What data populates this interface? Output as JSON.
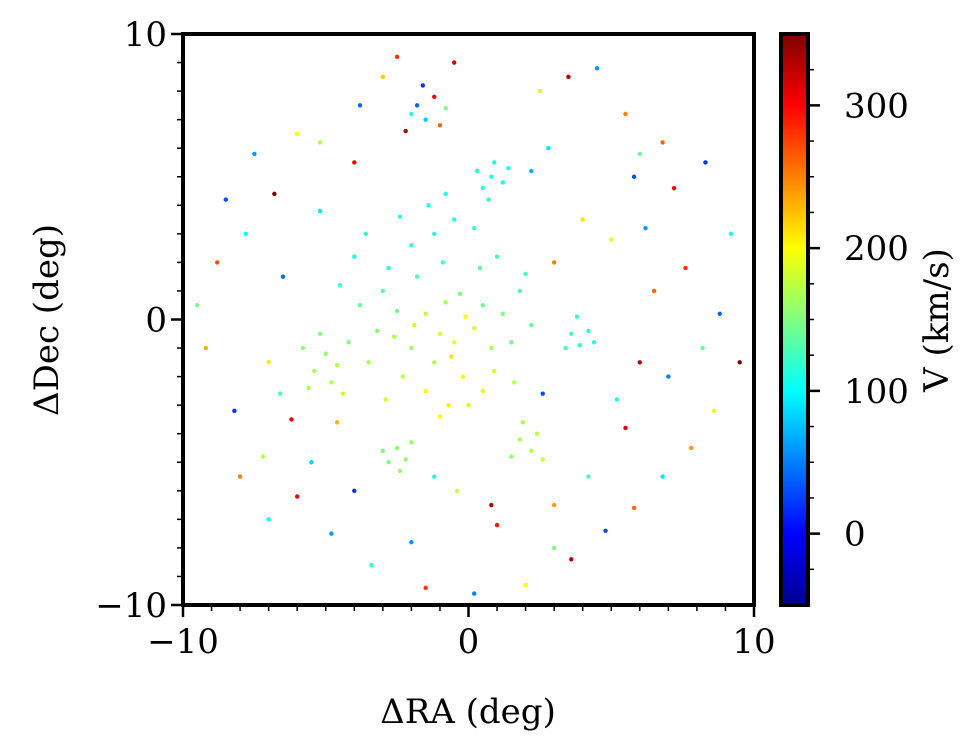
{
  "chart_data": {
    "type": "scatter",
    "title": "",
    "xlabel": "ΔRA (deg)",
    "ylabel": "ΔDec (deg)",
    "xlim": [
      -10,
      10
    ],
    "ylim": [
      -10,
      10
    ],
    "x_ticks": [
      {
        "value": -10,
        "label": "−10"
      },
      {
        "value": 0,
        "label": "0"
      },
      {
        "value": 10,
        "label": "10"
      }
    ],
    "y_ticks": [
      {
        "value": 10,
        "label": "10"
      },
      {
        "value": 0,
        "label": "0"
      },
      {
        "value": -10,
        "label": "−10"
      }
    ],
    "grid": false,
    "legend": "none",
    "colorbar": {
      "label": "V (km/s)",
      "colormap": "jet",
      "range": [
        -50,
        350
      ],
      "ticks": [
        {
          "value": 0,
          "label": "0"
        },
        {
          "value": 100,
          "label": "100"
        },
        {
          "value": 200,
          "label": "200"
        },
        {
          "value": 300,
          "label": "300"
        }
      ]
    },
    "series": [
      {
        "description": "sampled stars, color = line-of-sight velocity",
        "points": [
          [
            -1.0,
            -0.5,
            185
          ],
          [
            -0.5,
            -0.8,
            190
          ],
          [
            -1.5,
            0.2,
            175
          ],
          [
            -0.8,
            0.6,
            165
          ],
          [
            -2.0,
            -1.0,
            160
          ],
          [
            0.2,
            -0.3,
            180
          ],
          [
            -1.2,
            -1.5,
            170
          ],
          [
            -0.3,
            0.9,
            150
          ],
          [
            0.5,
            0.5,
            140
          ],
          [
            -2.5,
            0.3,
            145
          ],
          [
            -1.8,
            1.5,
            130
          ],
          [
            -0.9,
            2.0,
            125
          ],
          [
            -2.8,
            1.8,
            120
          ],
          [
            -1.2,
            3.0,
            118
          ],
          [
            -0.5,
            3.5,
            115
          ],
          [
            -2.0,
            2.6,
            122
          ],
          [
            -3.0,
            1.0,
            135
          ],
          [
            -3.2,
            -0.4,
            155
          ],
          [
            0.8,
            -1.0,
            165
          ],
          [
            1.2,
            0.2,
            150
          ],
          [
            1.5,
            -0.8,
            145
          ],
          [
            1.8,
            1.0,
            130
          ],
          [
            1.0,
            2.2,
            128
          ],
          [
            0.4,
            1.8,
            135
          ],
          [
            -0.2,
            -2.0,
            195
          ],
          [
            -1.5,
            -2.5,
            200
          ],
          [
            -0.7,
            -3.0,
            205
          ],
          [
            0.5,
            -2.5,
            190
          ],
          [
            -2.3,
            -2.0,
            175
          ],
          [
            -3.5,
            -1.5,
            165
          ],
          [
            -3.8,
            0.5,
            140
          ],
          [
            -2.6,
            -0.6,
            170
          ],
          [
            -1.9,
            -0.2,
            180
          ],
          [
            -0.1,
            0.1,
            200
          ],
          [
            -0.6,
            -1.3,
            210
          ],
          [
            0.9,
            -1.8,
            185
          ],
          [
            1.6,
            -2.2,
            170
          ],
          [
            2.2,
            -0.2,
            140
          ],
          [
            2.0,
            1.6,
            125
          ],
          [
            -4.0,
            2.2,
            110
          ],
          [
            -3.6,
            3.0,
            115
          ],
          [
            -2.4,
            3.6,
            118
          ],
          [
            -1.4,
            4.0,
            112
          ],
          [
            -0.8,
            4.4,
            108
          ],
          [
            0.2,
            3.2,
            120
          ],
          [
            -4.5,
            1.2,
            125
          ],
          [
            -4.2,
            -0.8,
            150
          ],
          [
            -2.9,
            -2.8,
            180
          ],
          [
            -1.0,
            -3.4,
            198
          ],
          [
            0.0,
            -3.0,
            188
          ],
          [
            -5.0,
            -1.2,
            160
          ],
          [
            -5.4,
            -1.8,
            165
          ],
          [
            -4.8,
            -2.2,
            170
          ],
          [
            -5.8,
            -1.0,
            155
          ],
          [
            -5.2,
            -0.5,
            150
          ],
          [
            -4.6,
            -1.6,
            172
          ],
          [
            -5.6,
            -2.4,
            168
          ],
          [
            -4.4,
            -2.6,
            175
          ],
          [
            0.8,
            5.0,
            110
          ],
          [
            0.5,
            4.6,
            115
          ],
          [
            1.2,
            4.8,
            108
          ],
          [
            0.9,
            5.5,
            112
          ],
          [
            0.3,
            5.2,
            118
          ],
          [
            1.4,
            5.3,
            105
          ],
          [
            0.7,
            4.2,
            120
          ],
          [
            3.6,
            -0.5,
            125
          ],
          [
            3.9,
            -0.9,
            120
          ],
          [
            4.2,
            -0.4,
            118
          ],
          [
            3.8,
            0.1,
            122
          ],
          [
            3.4,
            -1.0,
            128
          ],
          [
            4.4,
            -0.8,
            115
          ],
          [
            -2.5,
            -4.5,
            155
          ],
          [
            -2.2,
            -4.9,
            160
          ],
          [
            -2.8,
            -5.0,
            150
          ],
          [
            -2.0,
            -4.3,
            158
          ],
          [
            -3.0,
            -4.6,
            148
          ],
          [
            -2.4,
            -5.3,
            162
          ],
          [
            1.8,
            -4.2,
            165
          ],
          [
            2.2,
            -4.6,
            170
          ],
          [
            1.5,
            -4.8,
            160
          ],
          [
            2.4,
            -4.0,
            172
          ],
          [
            1.9,
            -3.6,
            168
          ],
          [
            2.6,
            -4.9,
            175
          ],
          [
            -1.8,
            7.5,
            40
          ],
          [
            -1.5,
            7.0,
            80
          ],
          [
            -1.2,
            7.8,
            300
          ],
          [
            -2.0,
            7.2,
            120
          ],
          [
            -1.0,
            6.8,
            260
          ],
          [
            -1.6,
            8.2,
            20
          ],
          [
            -0.8,
            7.4,
            150
          ],
          [
            -2.2,
            6.6,
            330
          ],
          [
            -8.5,
            4.2,
            30
          ],
          [
            -7.5,
            5.8,
            60
          ],
          [
            -6.0,
            6.5,
            200
          ],
          [
            -5.2,
            3.8,
            90
          ],
          [
            -4.0,
            5.5,
            300
          ],
          [
            -3.0,
            8.5,
            220
          ],
          [
            -2.5,
            9.2,
            280
          ],
          [
            -0.5,
            9.0,
            320
          ],
          [
            2.5,
            8.0,
            180
          ],
          [
            3.5,
            8.5,
            330
          ],
          [
            4.5,
            8.8,
            60
          ],
          [
            5.5,
            7.2,
            250
          ],
          [
            6.0,
            5.8,
            140
          ],
          [
            7.2,
            4.6,
            300
          ],
          [
            8.3,
            5.5,
            20
          ],
          [
            9.2,
            3.0,
            110
          ],
          [
            8.8,
            0.2,
            40
          ],
          [
            9.5,
            -1.5,
            350
          ],
          [
            8.6,
            -3.2,
            190
          ],
          [
            7.8,
            -4.5,
            240
          ],
          [
            6.8,
            -5.5,
            90
          ],
          [
            5.8,
            -6.6,
            260
          ],
          [
            4.8,
            -7.4,
            30
          ],
          [
            3.6,
            -8.4,
            330
          ],
          [
            2.0,
            -9.3,
            200
          ],
          [
            0.2,
            -9.6,
            50
          ],
          [
            -1.5,
            -9.4,
            280
          ],
          [
            -3.4,
            -8.6,
            120
          ],
          [
            -4.8,
            -7.5,
            60
          ],
          [
            -6.0,
            -6.2,
            310
          ],
          [
            -7.2,
            -4.8,
            170
          ],
          [
            -8.2,
            -3.2,
            20
          ],
          [
            -9.2,
            -1.0,
            230
          ],
          [
            -9.5,
            0.5,
            150
          ],
          [
            -8.8,
            2.0,
            270
          ],
          [
            -7.8,
            3.0,
            100
          ],
          [
            -6.5,
            1.5,
            40
          ],
          [
            -7.0,
            -1.5,
            210
          ],
          [
            -6.2,
            -3.5,
            300
          ],
          [
            -5.5,
            -5.0,
            80
          ],
          [
            5.0,
            2.8,
            190
          ],
          [
            6.5,
            1.0,
            260
          ],
          [
            7.0,
            -2.0,
            50
          ],
          [
            5.5,
            -3.8,
            310
          ],
          [
            4.2,
            -5.5,
            130
          ],
          [
            3.0,
            -6.5,
            240
          ],
          [
            -4.0,
            -6.0,
            20
          ],
          [
            -5.2,
            6.2,
            170
          ],
          [
            -6.8,
            4.4,
            350
          ],
          [
            2.8,
            6.0,
            90
          ],
          [
            4.0,
            3.5,
            210
          ],
          [
            6.2,
            3.2,
            60
          ],
          [
            7.6,
            1.8,
            280
          ],
          [
            8.2,
            -1.0,
            140
          ],
          [
            6.0,
            -1.5,
            330
          ],
          [
            5.2,
            -2.8,
            110
          ],
          [
            -8.0,
            -5.5,
            250
          ],
          [
            -7.0,
            -7.0,
            100
          ],
          [
            -2.0,
            -7.8,
            60
          ],
          [
            1.0,
            -7.2,
            290
          ],
          [
            3.0,
            -8.0,
            150
          ],
          [
            -3.8,
            7.5,
            40
          ],
          [
            -4.6,
            -3.6,
            230
          ],
          [
            -6.6,
            -2.6,
            130
          ],
          [
            2.2,
            5.2,
            70
          ],
          [
            3.0,
            2.0,
            250
          ],
          [
            2.6,
            -2.6,
            30
          ],
          [
            -0.4,
            -6.0,
            180
          ],
          [
            -1.2,
            -5.5,
            110
          ],
          [
            0.8,
            -6.5,
            330
          ],
          [
            5.8,
            5.0,
            30
          ],
          [
            6.8,
            6.2,
            260
          ]
        ]
      }
    ]
  }
}
